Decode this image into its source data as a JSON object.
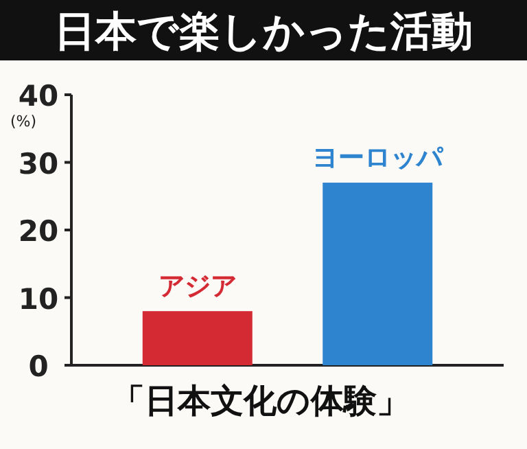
{
  "chart_data": {
    "type": "bar",
    "title": "日本で楽しかった活動",
    "xlabel": "「日本文化の体験」",
    "ylabel": "(%)",
    "categories": [
      "アジア",
      "ヨーロッパ"
    ],
    "values": [
      8,
      27
    ],
    "colors": [
      "#d42a34",
      "#2f84cf"
    ],
    "ylim": [
      0,
      40
    ],
    "yticks": [
      0,
      10,
      20,
      30,
      40
    ],
    "grid": false
  }
}
